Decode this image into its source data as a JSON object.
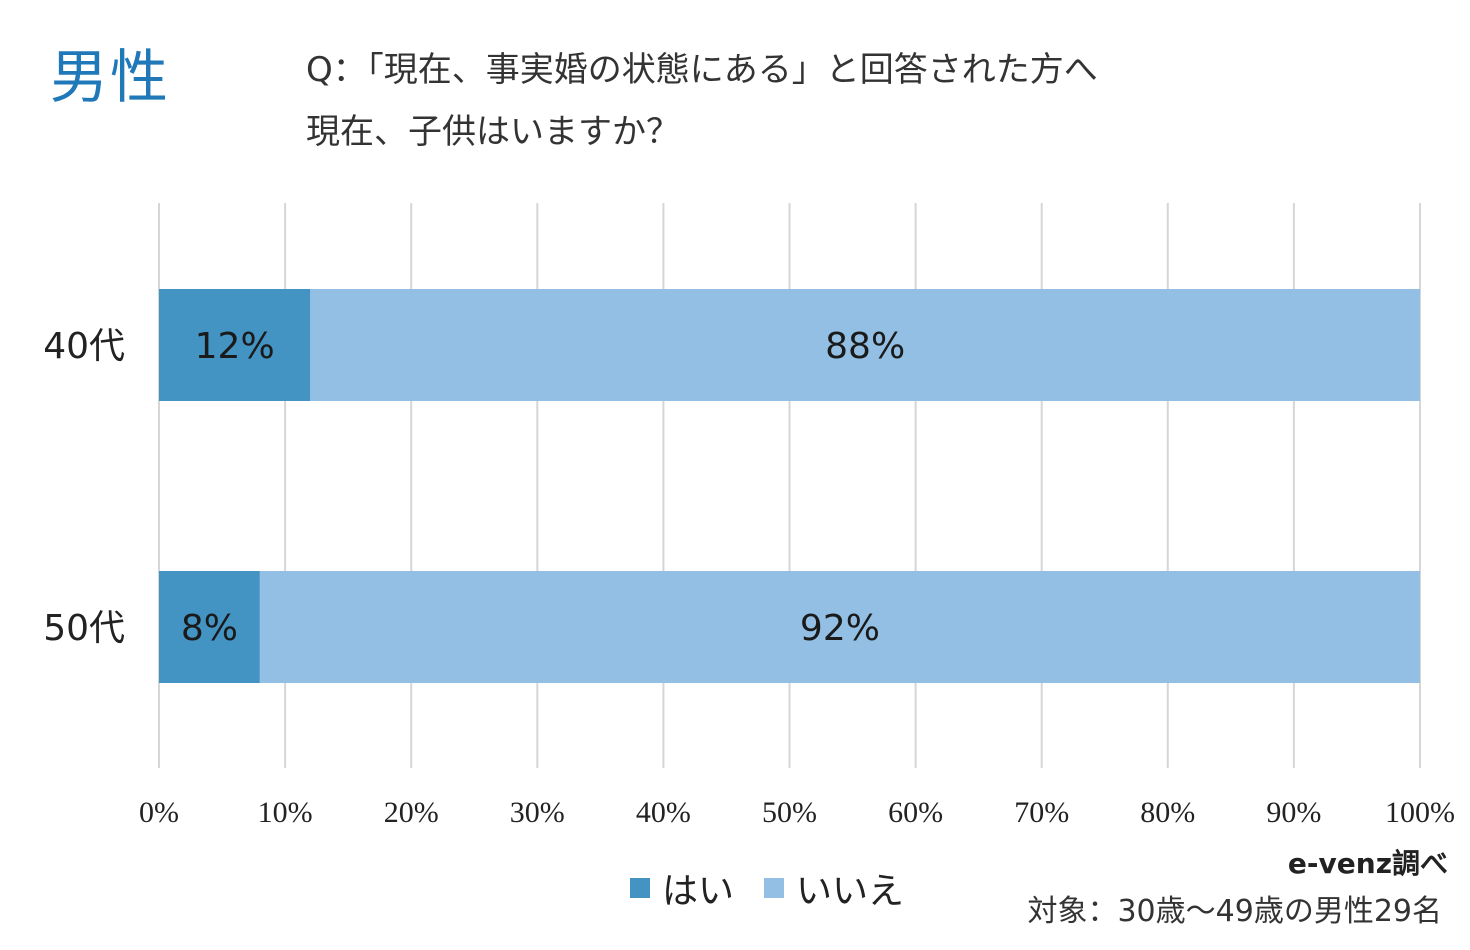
{
  "header": {
    "gender": "男性",
    "question_line1": "Q：「現在、事実婚の状態にある」と回答された方へ",
    "question_line2": "現在、子供はいますか？"
  },
  "chart_data": {
    "type": "bar",
    "orientation": "horizontal",
    "stacked": true,
    "categories": [
      "40代",
      "50代"
    ],
    "series": [
      {
        "name": "はい",
        "values": [
          12,
          8
        ],
        "labels": [
          "12%",
          "8%"
        ],
        "color": "#4393c3"
      },
      {
        "name": "いいえ",
        "values": [
          88,
          92
        ],
        "labels": [
          "88%",
          "92%"
        ],
        "color": "#92bfe3"
      }
    ],
    "xlim": [
      0,
      100
    ],
    "xticks": [
      "0%",
      "10%",
      "20%",
      "30%",
      "40%",
      "50%",
      "60%",
      "70%",
      "80%",
      "90%",
      "100%"
    ],
    "grid": true,
    "legend_position": "bottom"
  },
  "footer": {
    "source": "e-venz調べ",
    "target": "対象：30歳〜49歳の男性29名"
  }
}
